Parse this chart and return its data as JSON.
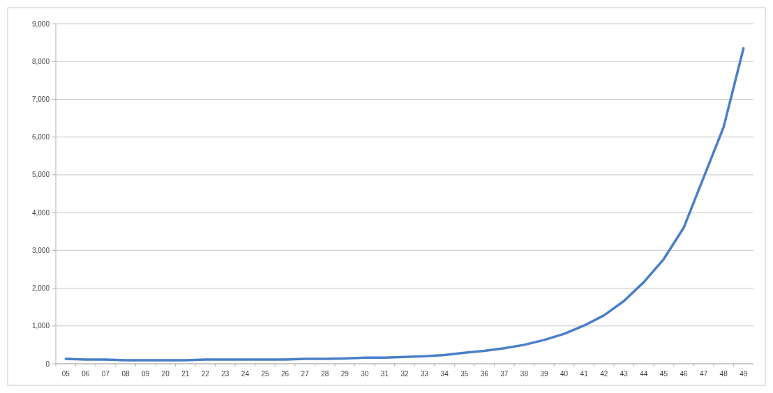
{
  "chart_data": {
    "type": "line",
    "categories": [
      "05",
      "06",
      "07",
      "08",
      "09",
      "20",
      "21",
      "22",
      "23",
      "24",
      "25",
      "26",
      "27",
      "28",
      "29",
      "30",
      "31",
      "32",
      "33",
      "34",
      "35",
      "36",
      "37",
      "38",
      "39",
      "40",
      "41",
      "42",
      "43",
      "44",
      "45",
      "46",
      "47",
      "48",
      "49"
    ],
    "series": [
      {
        "color": "#4a7fc8",
        "values": [
          130,
          110,
          110,
          90,
          90,
          90,
          90,
          110,
          110,
          110,
          110,
          110,
          130,
          130,
          140,
          160,
          160,
          180,
          200,
          230,
          290,
          340,
          410,
          500,
          630,
          790,
          1010,
          1280,
          1660,
          2160,
          2770,
          3600,
          4930,
          6260,
          8350
        ]
      }
    ],
    "ylim": [
      0,
      9000
    ],
    "yticks": [
      0,
      {
        "value": 1000,
        "label": "1,000"
      },
      {
        "value": 2000,
        "label": "2,000"
      },
      {
        "value": 3000,
        "label": "3,000"
      },
      {
        "value": 4000,
        "label": "4,000"
      },
      {
        "value": 5000,
        "label": "5,000"
      },
      {
        "value": 6000,
        "label": "6,000"
      },
      {
        "value": 7000,
        "label": "7,000"
      },
      {
        "value": 8000,
        "label": "8,000"
      },
      {
        "value": 9000,
        "label": "9,000"
      }
    ],
    "grid": "y",
    "marker": "none",
    "line_style": "solid"
  }
}
